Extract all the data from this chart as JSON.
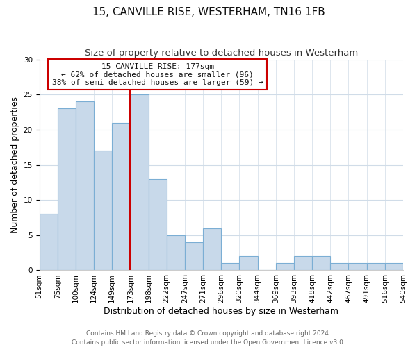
{
  "title": "15, CANVILLE RISE, WESTERHAM, TN16 1FB",
  "subtitle": "Size of property relative to detached houses in Westerham",
  "xlabel": "Distribution of detached houses by size in Westerham",
  "ylabel": "Number of detached properties",
  "bin_labels": [
    "51sqm",
    "75sqm",
    "100sqm",
    "124sqm",
    "149sqm",
    "173sqm",
    "198sqm",
    "222sqm",
    "247sqm",
    "271sqm",
    "296sqm",
    "320sqm",
    "344sqm",
    "369sqm",
    "393sqm",
    "418sqm",
    "442sqm",
    "467sqm",
    "491sqm",
    "516sqm",
    "540sqm"
  ],
  "bar_heights": [
    8,
    23,
    24,
    17,
    21,
    25,
    13,
    5,
    4,
    6,
    1,
    2,
    0,
    1,
    2,
    2,
    1,
    1,
    1,
    1
  ],
  "bar_color": "#c8d9ea",
  "bar_edge_color": "#7baed4",
  "vline_label_idx": 5,
  "vline_color": "#cc0000",
  "ylim": [
    0,
    30
  ],
  "yticks": [
    0,
    5,
    10,
    15,
    20,
    25,
    30
  ],
  "annotation_text": "15 CANVILLE RISE: 177sqm\n← 62% of detached houses are smaller (96)\n38% of semi-detached houses are larger (59) →",
  "annotation_box_color": "#ffffff",
  "annotation_box_edge": "#cc0000",
  "footer_line1": "Contains HM Land Registry data © Crown copyright and database right 2024.",
  "footer_line2": "Contains public sector information licensed under the Open Government Licence v3.0.",
  "grid_color": "#d0dce8",
  "title_fontsize": 11,
  "subtitle_fontsize": 9.5,
  "xlabel_fontsize": 9,
  "ylabel_fontsize": 9,
  "tick_fontsize": 7.5,
  "annotation_fontsize": 8,
  "footer_fontsize": 6.5
}
